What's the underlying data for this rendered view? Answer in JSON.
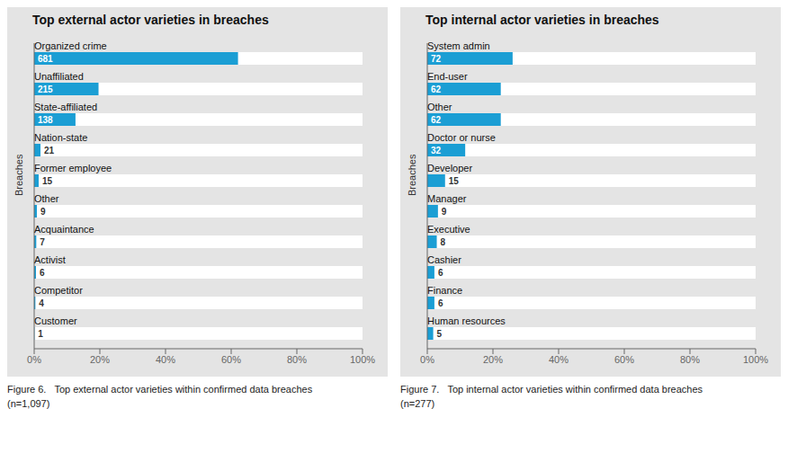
{
  "chart_data": [
    {
      "type": "bar",
      "orientation": "horizontal",
      "title": "Top external actor varieties in breaches",
      "y_label": "Breaches",
      "caption": [
        "Figure 6.   Top external actor varieties within confirmed data breaches",
        "(n=1,097)"
      ],
      "categories": [
        "Organized crime",
        "Unaffiliated",
        "State-affiliated",
        "Nation-state",
        "Former employee",
        "Other",
        "Acquaintance",
        "Activist",
        "Competitor",
        "Customer"
      ],
      "values": [
        62.0784,
        19.5989,
        12.5798,
        1.9143,
        1.3674,
        0.8204,
        0.6381,
        0.5469,
        0.3646,
        0.0912
      ],
      "counts": [
        681,
        215,
        138,
        21,
        15,
        9,
        7,
        6,
        4,
        1
      ],
      "color": "#1b9ed4",
      "grid": false,
      "xlim": [
        0,
        100
      ],
      "xticks": [
        {
          "value": 0,
          "label": "0%"
        },
        {
          "value": 20,
          "label": "20%"
        },
        {
          "value": 40,
          "label": "40%"
        },
        {
          "value": 60,
          "label": "60%"
        },
        {
          "value": 80,
          "label": "80%"
        },
        {
          "value": 100,
          "label": "100%"
        }
      ]
    },
    {
      "type": "bar",
      "orientation": "horizontal",
      "title": "Top internal actor varieties in breaches",
      "y_label": "Breaches",
      "caption": [
        "Figure 7.   Top internal actor varieties within confirmed data breaches",
        "(n=277)"
      ],
      "categories": [
        "System admin",
        "End-user",
        "Other",
        "Doctor or nurse",
        "Developer",
        "Manager",
        "Executive",
        "Cashier",
        "Finance",
        "Human resources"
      ],
      "values": [
        25.9928,
        22.3827,
        22.3827,
        11.5523,
        5.4152,
        3.2491,
        2.8881,
        2.1661,
        2.1661,
        1.8051
      ],
      "counts": [
        72,
        62,
        62,
        32,
        15,
        9,
        8,
        6,
        6,
        5
      ],
      "color": "#1b9ed4",
      "grid": false,
      "xlim": [
        0,
        100
      ],
      "xticks": [
        {
          "value": 0,
          "label": "0%"
        },
        {
          "value": 20,
          "label": "20%"
        },
        {
          "value": 40,
          "label": "40%"
        },
        {
          "value": 60,
          "label": "60%"
        },
        {
          "value": 80,
          "label": "80%"
        },
        {
          "value": 100,
          "label": "100%"
        }
      ]
    }
  ]
}
